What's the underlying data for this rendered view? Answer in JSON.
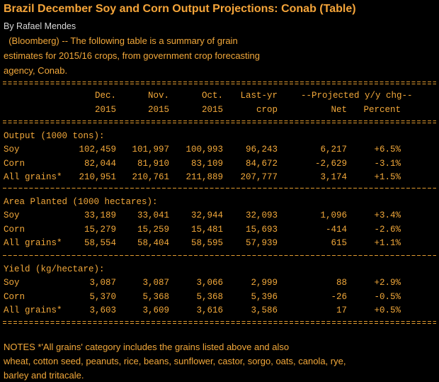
{
  "header": {
    "title": "Brazil December Soy and Corn Output Projections: Conab (Table)",
    "byline": "By Rafael Mendes"
  },
  "intro": {
    "lines": [
      "  (Bloomberg) -- The following table is a summary of grain",
      "estimates for 2015/16 crops, from government crop forecasting",
      "agency, Conab."
    ]
  },
  "table": {
    "group_header": "--Projected y/y chg--",
    "columns": [
      [
        "Dec.",
        "2015"
      ],
      [
        "Nov.",
        "2015"
      ],
      [
        "Oct.",
        "2015"
      ],
      [
        "Last-yr",
        "crop"
      ],
      [
        "",
        "Net"
      ],
      [
        "",
        "Percent"
      ]
    ],
    "sections": [
      {
        "title": "Output (1000 tons):",
        "rows": [
          {
            "label": "Soy",
            "values": [
              "102,459",
              "101,997",
              "100,993",
              "96,243",
              "6,217",
              "+6.5%"
            ]
          },
          {
            "label": "Corn",
            "values": [
              "82,044",
              "81,910",
              "83,109",
              "84,672",
              "-2,629",
              "-3.1%"
            ]
          },
          {
            "label": "All grains*",
            "values": [
              "210,951",
              "210,761",
              "211,889",
              "207,777",
              "3,174",
              "+1.5%"
            ]
          }
        ]
      },
      {
        "title": "Area Planted (1000 hectares):",
        "rows": [
          {
            "label": "Soy",
            "values": [
              "33,189",
              "33,041",
              "32,944",
              "32,093",
              "1,096",
              "+3.4%"
            ]
          },
          {
            "label": "Corn",
            "values": [
              "15,279",
              "15,259",
              "15,481",
              "15,693",
              "-414",
              "-2.6%"
            ]
          },
          {
            "label": "All grains*",
            "values": [
              "58,554",
              "58,404",
              "58,595",
              "57,939",
              "615",
              "+1.1%"
            ]
          }
        ]
      },
      {
        "title": "Yield (kg/hectare):",
        "rows": [
          {
            "label": "Soy",
            "values": [
              "3,087",
              "3,087",
              "3,066",
              "2,999",
              "88",
              "+2.9%"
            ]
          },
          {
            "label": "Corn",
            "values": [
              "5,370",
              "5,368",
              "5,368",
              "5,396",
              "-26",
              "-0.5%"
            ]
          },
          {
            "label": "All grains*",
            "values": [
              "3,603",
              "3,609",
              "3,616",
              "3,586",
              "17",
              "+0.5%"
            ]
          }
        ]
      }
    ]
  },
  "notes": {
    "lines": [
      "NOTES *'All grains' category includes the grains listed above and also",
      "wheat, cotton seed, peanuts, rice, beans, sunflower, castor, sorgo, oats, canola, rye,",
      "barley and tritacale."
    ]
  }
}
